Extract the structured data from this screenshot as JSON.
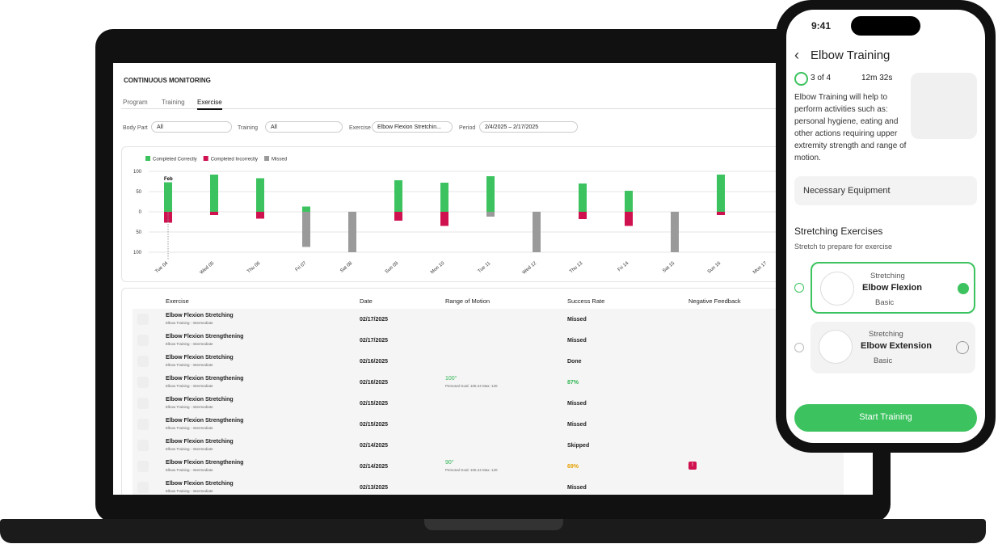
{
  "header": {
    "title": "CONTINUOUS MONITORING"
  },
  "tabs": [
    "Program",
    "Training",
    "Exercise"
  ],
  "filters": [
    {
      "label": "Body Part",
      "value": "All"
    },
    {
      "label": "Training",
      "value": "All"
    },
    {
      "label": "Exercise",
      "value": "Elbow Flexion Stretchin..."
    },
    {
      "label": "Period",
      "value": "2/4/2025 – 2/17/2025"
    }
  ],
  "chart_data": {
    "type": "bar",
    "stacked": true,
    "annotation": "Feb",
    "categories": [
      "Tue 04",
      "Wed 05",
      "Thu 06",
      "Fri 07",
      "Sat 08",
      "Sun 09",
      "Mon 10",
      "Tue 11",
      "Wed 12",
      "Thu 13",
      "Fri 14",
      "Sat 15",
      "Sun 16",
      "Mon 17"
    ],
    "series": [
      {
        "name": "Completed Correctly",
        "color": "#3cc35f",
        "values": [
          73,
          92,
          83,
          13,
          0,
          78,
          72,
          88,
          0,
          70,
          52,
          0,
          92,
          null
        ]
      },
      {
        "name": "Completed Incorrectly",
        "color": "#d0114f",
        "values": [
          -27,
          -8,
          -17,
          0,
          0,
          -22,
          -35,
          0,
          0,
          -18,
          -35,
          0,
          -8,
          null
        ]
      },
      {
        "name": "Missed",
        "color": "#9a9a9a",
        "values": [
          0,
          0,
          0,
          -87,
          -100,
          0,
          0,
          -12,
          -100,
          0,
          0,
          -100,
          0,
          null
        ]
      }
    ],
    "ylim": [
      -100,
      100
    ],
    "yticks": [
      {
        "value": 100,
        "label": "100"
      },
      {
        "value": 50,
        "label": "50"
      },
      0,
      {
        "value": -50,
        "label": "50"
      },
      {
        "value": -100,
        "label": "100"
      }
    ],
    "grid": true,
    "legend": "top-left"
  },
  "table": {
    "columns": [
      "Exercise",
      "Date",
      "Range of Motion",
      "Success Rate",
      "Negative Feedback"
    ],
    "rows": [
      {
        "exercise": "Elbow Flexion Stretching",
        "sub": "Elbow Training - Intermediate",
        "date": "02/17/2025",
        "success": "Missed"
      },
      {
        "exercise": "Elbow Flexion Strengthening",
        "sub": "Elbow Training - Intermediate",
        "date": "02/17/2025",
        "success": "Missed"
      },
      {
        "exercise": "Elbow Flexion Stretching",
        "sub": "Elbow Training - Intermediate",
        "date": "02/16/2025",
        "success": "Done"
      },
      {
        "exercise": "Elbow Flexion Strengthening",
        "sub": "Elbow Training - Intermediate",
        "date": "02/16/2025",
        "range": "100°",
        "goal": "Personal Goal: 105.24 Max: 120",
        "success": "87%",
        "color": "#2fb552"
      },
      {
        "exercise": "Elbow Flexion Stretching",
        "sub": "Elbow Training - Intermediate",
        "date": "02/15/2025",
        "success": "Missed"
      },
      {
        "exercise": "Elbow Flexion Strengthening",
        "sub": "Elbow Training - Intermediate",
        "date": "02/15/2025",
        "success": "Missed"
      },
      {
        "exercise": "Elbow Flexion Stretching",
        "sub": "Elbow Training - Intermediate",
        "date": "02/14/2025",
        "success": "Skipped"
      },
      {
        "exercise": "Elbow Flexion Strengthening",
        "sub": "Elbow Training - Intermediate",
        "date": "02/14/2025",
        "range": "90°",
        "goal": "Personal Goal: 105.24 Max: 120",
        "success": "69%",
        "color": "#e6a000",
        "flag": "!"
      },
      {
        "exercise": "Elbow Flexion Stretching",
        "sub": "Elbow Training - Intermediate",
        "date": "02/13/2025",
        "success": "Missed"
      }
    ]
  },
  "phone": {
    "time": "9:41",
    "title": "Elbow Training",
    "progress": "3 of 4",
    "duration": "12m 32s",
    "description": "Elbow Training will help to perform activities such as: personal hygiene, eating and other actions requiring upper extremity strength and range of motion.",
    "equipment": "Necessary Equipment",
    "section": "Stretching Exercises",
    "section_sub": "Stretch to prepare for exercise",
    "cards": [
      {
        "tag": "Stretching",
        "name": "Elbow Flexion",
        "level": "Basic"
      },
      {
        "tag": "Stretching",
        "name": "Elbow Extension",
        "level": "Basic"
      }
    ],
    "button": "Start Training"
  }
}
